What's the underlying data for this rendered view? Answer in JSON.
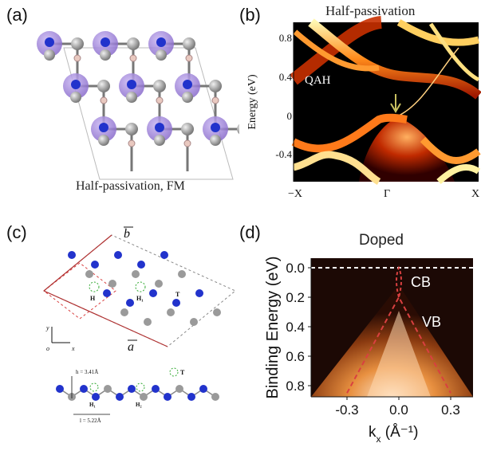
{
  "labels": {
    "a": "(a)",
    "b": "(b)",
    "c": "(c)",
    "d": "(d)"
  },
  "panel_a": {
    "caption": "Half-passivation, FM"
  },
  "panel_b": {
    "title": "Half-passivation",
    "ylabel": "Energy (eV)",
    "yticks": [
      "0.8",
      "0.4",
      "0",
      "-0.4"
    ],
    "xticks": [
      "−X",
      "Γ",
      "X"
    ],
    "annotation": "QAH"
  },
  "panel_c": {
    "vec_b": "b",
    "vec_a": "a",
    "site_H": "H",
    "site_H1": "H₁",
    "site_T": "T",
    "axis_y": "y",
    "axis_x": "x",
    "axis_o": "o",
    "side_h": "h = 3.41Å",
    "side_l": "l = 5.22Å",
    "side_H1": "H₁",
    "side_H2": "H₂",
    "side_T": "T"
  },
  "panel_d": {
    "title": "Doped",
    "ylabel": "Binding Energy (eV)",
    "yticks": [
      "0.0",
      "0.2",
      "0.4",
      "0.6",
      "0.8"
    ],
    "xticks": [
      "-0.3",
      "0.0",
      "0.3"
    ],
    "xlabel_main": "k",
    "xlabel_sub": "x",
    "xlabel_unit": " (Å⁻¹)",
    "cb": "CB",
    "vb": "VB"
  },
  "colors": {
    "atom_purple": "#9a7fd6",
    "atom_blue": "#2233cc",
    "atom_gray": "#9a9a9a",
    "dashed_red": "#d94040"
  }
}
